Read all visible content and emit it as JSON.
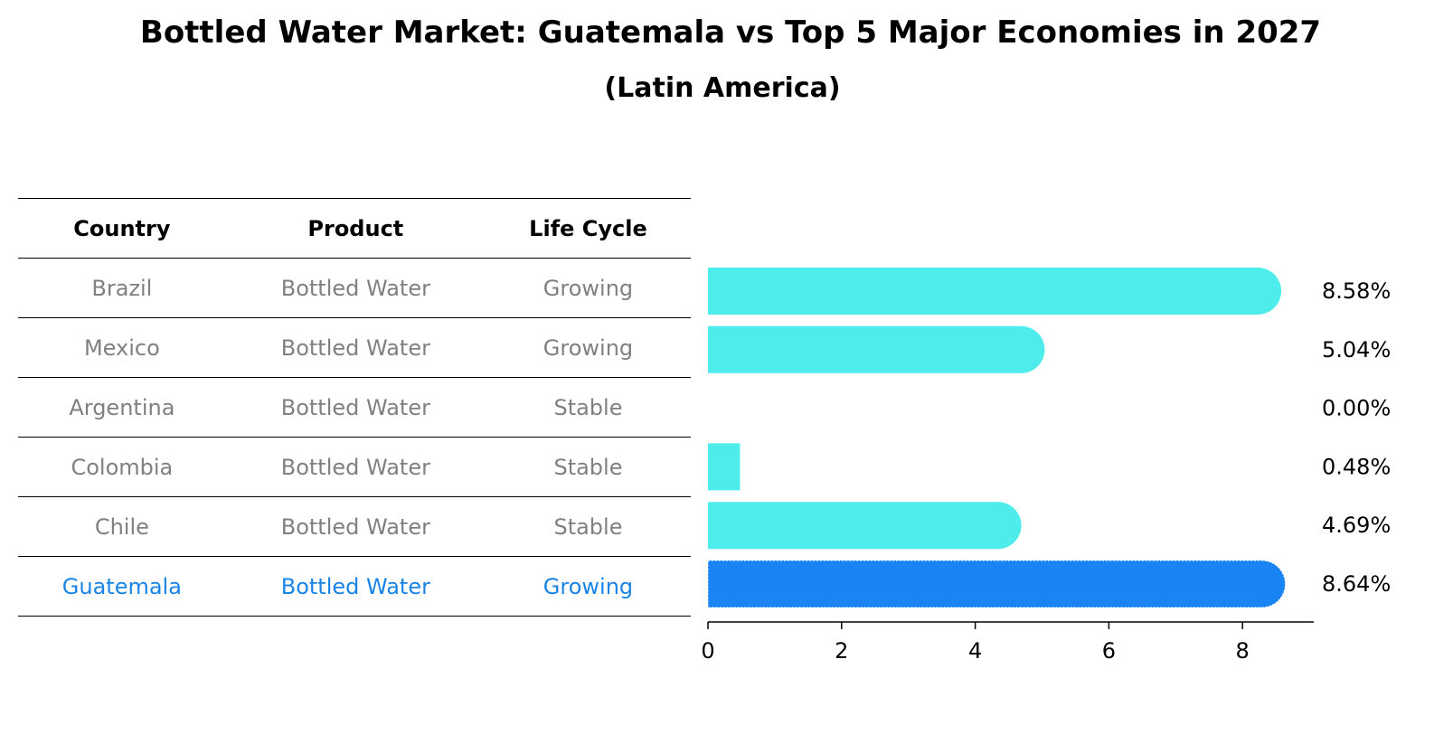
{
  "title": "Bottled Water Market: Guatemala vs Top 5 Major Economies in 2027",
  "subtitle": "(Latin America)",
  "table": {
    "headers": [
      "Country",
      "Product",
      "Life Cycle"
    ],
    "rows": [
      {
        "country": "Brazil",
        "product": "Bottled Water",
        "life_cycle": "Growing"
      },
      {
        "country": "Mexico",
        "product": "Bottled Water",
        "life_cycle": "Growing"
      },
      {
        "country": "Argentina",
        "product": "Bottled Water",
        "life_cycle": "Stable"
      },
      {
        "country": "Colombia",
        "product": "Bottled Water",
        "life_cycle": "Stable"
      },
      {
        "country": "Chile",
        "product": "Bottled Water",
        "life_cycle": "Stable"
      },
      {
        "country": "Guatemala",
        "product": "Bottled Water",
        "life_cycle": "Growing"
      }
    ]
  },
  "colors": {
    "bar": "#4eecea",
    "highlight_bar": "#1a84f5",
    "highlight_text": "#1a84e6",
    "muted_text": "#808080"
  },
  "chart_data": {
    "type": "bar",
    "orientation": "horizontal",
    "categories": [
      "Brazil",
      "Mexico",
      "Argentina",
      "Colombia",
      "Chile",
      "Guatemala"
    ],
    "values": [
      8.58,
      5.04,
      0.0,
      0.48,
      4.69,
      8.64
    ],
    "value_labels": [
      "8.58%",
      "5.04%",
      "0.00%",
      "0.48%",
      "4.69%",
      "8.64%"
    ],
    "highlight": "Guatemala",
    "xticks": [
      "0",
      "2",
      "4",
      "6",
      "8"
    ],
    "xlim": [
      0,
      9.1
    ],
    "grid": false
  }
}
